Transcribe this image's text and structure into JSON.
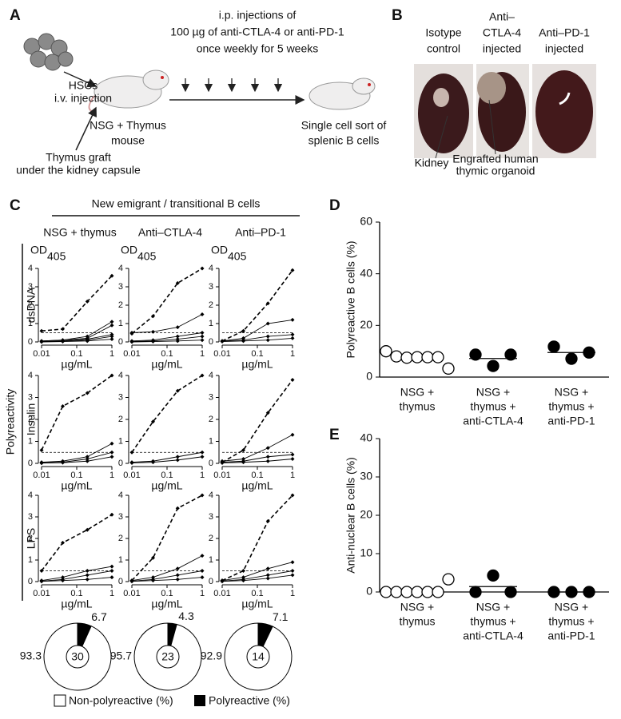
{
  "panel_a": {
    "label": "A",
    "injection_text": [
      "i.p. injections of",
      "100 µg of anti-CTLA-4 or anti-PD-1",
      "once weekly for 5 weeks"
    ],
    "hsc": [
      "HSCs",
      "i.v. injection"
    ],
    "mouse": [
      "NSG + Thymus",
      "mouse"
    ],
    "graft": [
      "Thymus graft",
      "under the kidney capsule"
    ],
    "sort": [
      "Single cell sort of",
      "splenic B cells"
    ]
  },
  "panel_b": {
    "label": "B",
    "columns": [
      [
        "Isotype",
        "control"
      ],
      [
        "Anti–",
        "CTLA-4",
        "injected"
      ],
      [
        "Anti–PD-1",
        "injected"
      ]
    ],
    "kidney": "Kidney",
    "organoid": [
      "Engrafted human",
      "thymic organoid"
    ]
  },
  "panel_c": {
    "label": "C",
    "header": "New emigrant / transitional B cells",
    "columns": [
      "NSG + thymus",
      "Anti–CTLA-4",
      "Anti–PD-1"
    ],
    "rows": [
      "dsDNA",
      "Insulin",
      "LPS"
    ],
    "side": "Polyreactivity",
    "legend": [
      "Non-polyreactive (%)",
      "Polyreactive (%)"
    ]
  },
  "panel_d": {
    "label": "D"
  },
  "panel_e": {
    "label": "E"
  },
  "chart_data": [
    {
      "type": "line",
      "y_label": "OD",
      "y_label_sub": "405",
      "x_label": "µg/mL",
      "x": [
        0.01,
        0.04,
        0.2,
        1
      ],
      "xlim": [
        0.01,
        1
      ],
      "xticks": [
        0.01,
        0.1,
        1
      ],
      "log_x": true,
      "ylim": [
        0,
        4
      ],
      "yticks": [
        0,
        1,
        2,
        3,
        4
      ],
      "threshold": 0.5,
      "color": "#000",
      "series": [
        {
          "dashed": true,
          "values": [
            0.6,
            0.7,
            2.2,
            3.6
          ]
        },
        {
          "values": [
            0.05,
            0.1,
            0.3,
            1.1
          ]
        },
        {
          "values": [
            0.05,
            0.1,
            0.2,
            0.9
          ]
        },
        {
          "values": [
            0.02,
            0.05,
            0.15,
            0.4
          ]
        },
        {
          "values": [
            0.02,
            0.04,
            0.1,
            0.3
          ]
        },
        {
          "values": [
            0,
            0.02,
            0.05,
            0.15
          ]
        }
      ]
    },
    {
      "type": "line",
      "y_label": "OD",
      "y_label_sub": "405",
      "x_label": "µg/mL",
      "x": [
        0.01,
        0.04,
        0.2,
        1
      ],
      "xlim": [
        0.01,
        1
      ],
      "xticks": [
        0.01,
        0.1,
        1
      ],
      "log_x": true,
      "ylim": [
        0,
        4
      ],
      "yticks": [
        0,
        1,
        2,
        3,
        4
      ],
      "threshold": 0.5,
      "color": "#000",
      "series": [
        {
          "dashed": true,
          "values": [
            0.45,
            1.4,
            3.2,
            4.0
          ]
        },
        {
          "values": [
            0.5,
            0.55,
            0.8,
            1.5
          ]
        },
        {
          "values": [
            0.05,
            0.1,
            0.3,
            0.5
          ]
        },
        {
          "values": [
            0.02,
            0.05,
            0.15,
            0.3
          ]
        },
        {
          "values": [
            0,
            0.02,
            0.05,
            0.1
          ]
        }
      ]
    },
    {
      "type": "line",
      "y_label": "OD",
      "y_label_sub": "405",
      "x_label": "µg/mL",
      "x": [
        0.01,
        0.04,
        0.2,
        1
      ],
      "xlim": [
        0.01,
        1
      ],
      "xticks": [
        0.01,
        0.1,
        1
      ],
      "log_x": true,
      "ylim": [
        0,
        4
      ],
      "yticks": [
        0,
        1,
        2,
        3,
        4
      ],
      "threshold": 0.5,
      "color": "#000",
      "series": [
        {
          "dashed": true,
          "values": [
            0.05,
            0.6,
            2.1,
            3.9
          ]
        },
        {
          "values": [
            0.05,
            0.2,
            1.0,
            1.2
          ]
        },
        {
          "values": [
            0.05,
            0.1,
            0.3,
            0.4
          ]
        },
        {
          "values": [
            0.02,
            0.05,
            0.1,
            0.2
          ]
        }
      ]
    },
    {
      "type": "line",
      "x_label": "µg/mL",
      "x": [
        0.01,
        0.04,
        0.2,
        1
      ],
      "xlim": [
        0.01,
        1
      ],
      "xticks": [
        0.01,
        0.1,
        1
      ],
      "log_x": true,
      "ylim": [
        0,
        4
      ],
      "yticks": [
        0,
        1,
        2,
        3,
        4
      ],
      "threshold": 0.5,
      "color": "#000",
      "series": [
        {
          "dashed": true,
          "values": [
            0.6,
            2.6,
            3.2,
            4.0
          ]
        },
        {
          "values": [
            0.05,
            0.1,
            0.3,
            0.9
          ]
        },
        {
          "values": [
            0.02,
            0.05,
            0.2,
            0.5
          ]
        },
        {
          "values": [
            0.01,
            0.03,
            0.1,
            0.3
          ]
        }
      ]
    },
    {
      "type": "line",
      "x_label": "µg/mL",
      "x": [
        0.01,
        0.04,
        0.2,
        1
      ],
      "xlim": [
        0.01,
        1
      ],
      "xticks": [
        0.01,
        0.1,
        1
      ],
      "log_x": true,
      "ylim": [
        0,
        4
      ],
      "yticks": [
        0,
        1,
        2,
        3,
        4
      ],
      "threshold": 0.5,
      "color": "#000",
      "series": [
        {
          "dashed": true,
          "values": [
            0.5,
            1.9,
            3.3,
            4.0
          ]
        },
        {
          "values": [
            0.05,
            0.1,
            0.3,
            0.5
          ]
        },
        {
          "values": [
            0.02,
            0.05,
            0.15,
            0.3
          ]
        }
      ]
    },
    {
      "type": "line",
      "x_label": "µg/mL",
      "x": [
        0.01,
        0.04,
        0.2,
        1
      ],
      "xlim": [
        0.01,
        1
      ],
      "xticks": [
        0.01,
        0.1,
        1
      ],
      "log_x": true,
      "ylim": [
        0,
        4
      ],
      "yticks": [
        0,
        1,
        2,
        3,
        4
      ],
      "threshold": 0.5,
      "color": "#000",
      "series": [
        {
          "dashed": true,
          "values": [
            0.05,
            0.6,
            2.3,
            3.8
          ]
        },
        {
          "values": [
            0.1,
            0.2,
            0.7,
            1.3
          ]
        },
        {
          "values": [
            0.05,
            0.1,
            0.3,
            0.4
          ]
        },
        {
          "values": [
            0.02,
            0.05,
            0.1,
            0.2
          ]
        }
      ]
    },
    {
      "type": "line",
      "x_label": "µg/mL",
      "x": [
        0.01,
        0.04,
        0.2,
        1
      ],
      "xlim": [
        0.01,
        1
      ],
      "xticks": [
        0.01,
        0.1,
        1
      ],
      "log_x": true,
      "ylim": [
        0,
        4
      ],
      "yticks": [
        0,
        1,
        2,
        3,
        4
      ],
      "threshold": 0.5,
      "color": "#000",
      "series": [
        {
          "dashed": true,
          "values": [
            0.5,
            1.8,
            2.4,
            3.1
          ]
        },
        {
          "values": [
            0.05,
            0.2,
            0.5,
            0.7
          ]
        },
        {
          "values": [
            0.02,
            0.1,
            0.3,
            0.5
          ]
        },
        {
          "values": [
            0.01,
            0.05,
            0.1,
            0.2
          ]
        }
      ]
    },
    {
      "type": "line",
      "x_label": "µg/mL",
      "x": [
        0.01,
        0.04,
        0.2,
        1
      ],
      "xlim": [
        0.01,
        1
      ],
      "xticks": [
        0.01,
        0.1,
        1
      ],
      "log_x": true,
      "ylim": [
        0,
        4
      ],
      "yticks": [
        0,
        1,
        2,
        3,
        4
      ],
      "threshold": 0.5,
      "color": "#000",
      "series": [
        {
          "dashed": true,
          "values": [
            0.05,
            1.1,
            3.4,
            4.0
          ]
        },
        {
          "values": [
            0.05,
            0.2,
            0.6,
            1.2
          ]
        },
        {
          "values": [
            0.02,
            0.1,
            0.3,
            0.5
          ]
        },
        {
          "values": [
            0.01,
            0.05,
            0.1,
            0.2
          ]
        }
      ]
    },
    {
      "type": "line",
      "x_label": "µg/mL",
      "x": [
        0.01,
        0.04,
        0.2,
        1
      ],
      "xlim": [
        0.01,
        1
      ],
      "xticks": [
        0.01,
        0.1,
        1
      ],
      "log_x": true,
      "ylim": [
        0,
        4
      ],
      "yticks": [
        0,
        1,
        2,
        3,
        4
      ],
      "threshold": 0.5,
      "color": "#000",
      "series": [
        {
          "dashed": true,
          "values": [
            0.05,
            0.5,
            2.8,
            4.0
          ]
        },
        {
          "values": [
            0.05,
            0.2,
            0.6,
            0.9
          ]
        },
        {
          "values": [
            0.02,
            0.1,
            0.3,
            0.5
          ]
        },
        {
          "values": [
            0.01,
            0.05,
            0.15,
            0.3
          ]
        }
      ]
    },
    {
      "type": "pie",
      "values": [
        93.3,
        6.7
      ],
      "colors": [
        "#ffffff",
        "#000000"
      ],
      "n": 30
    },
    {
      "type": "pie",
      "values": [
        95.7,
        4.3
      ],
      "colors": [
        "#ffffff",
        "#000000"
      ],
      "n": 23
    },
    {
      "type": "pie",
      "values": [
        92.9,
        7.1
      ],
      "colors": [
        "#ffffff",
        "#000000"
      ],
      "n": 14
    },
    {
      "type": "dot",
      "y_label": "Polyreactive B cells (%)",
      "ylim": [
        0,
        60
      ],
      "yticks": [
        0,
        20,
        40,
        60
      ],
      "categories": [
        [
          "NSG +",
          "thymus"
        ],
        [
          "NSG +",
          "thymus +",
          "anti-CTLA-4"
        ],
        [
          "NSG +",
          "thymus +",
          "anti-PD-1"
        ]
      ],
      "groups": [
        {
          "fill": "#ffffff",
          "values": [
            10,
            8,
            7.5,
            7.7,
            7.7,
            7.7,
            3.3
          ],
          "mean": 7.4
        },
        {
          "fill": "#000000",
          "values": [
            8.7,
            4.3,
            8.7
          ],
          "mean": 7.2
        },
        {
          "fill": "#000000",
          "values": [
            11.8,
            7.1,
            9.5
          ],
          "mean": 9.5
        }
      ]
    },
    {
      "type": "dot",
      "y_label": "Anti-nuclear B cells (%)",
      "ylim": [
        0,
        40
      ],
      "yticks": [
        0,
        10,
        20,
        30,
        40
      ],
      "categories": [
        [
          "NSG +",
          "thymus"
        ],
        [
          "NSG +",
          "thymus +",
          "anti-CTLA-4"
        ],
        [
          "NSG +",
          "thymus +",
          "anti-PD-1"
        ]
      ],
      "groups": [
        {
          "fill": "#ffffff",
          "values": [
            0,
            0,
            0,
            0,
            0,
            0,
            3.3
          ],
          "mean": 0.5
        },
        {
          "fill": "#000000",
          "values": [
            0,
            4.3,
            0
          ],
          "mean": 1.4
        },
        {
          "fill": "#000000",
          "values": [
            0,
            0,
            0
          ],
          "mean": 0
        }
      ]
    }
  ]
}
